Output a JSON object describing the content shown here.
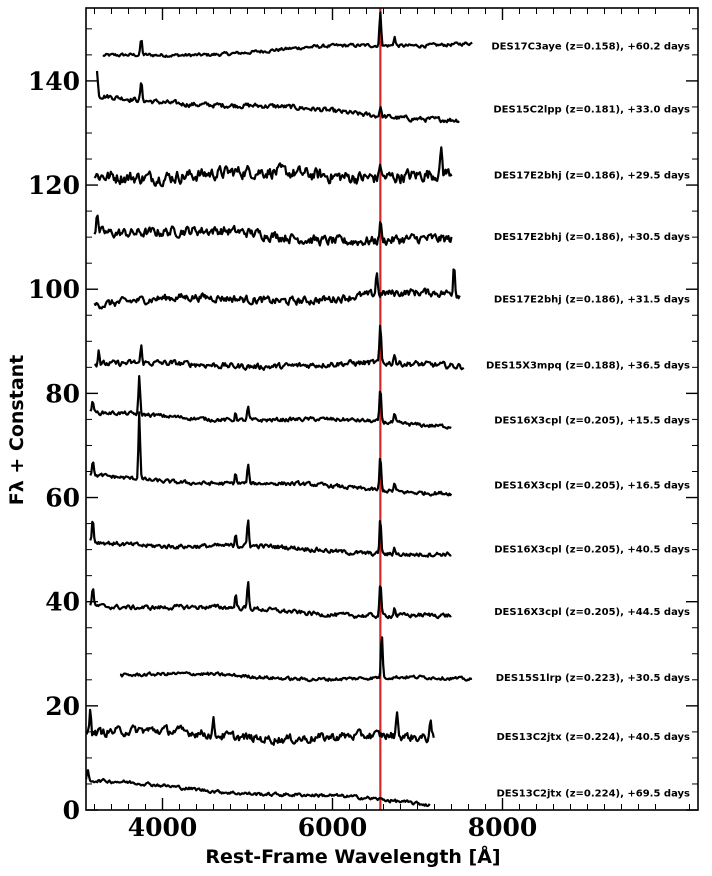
{
  "chart_data": {
    "type": "line",
    "xlabel": "Rest-Frame Wavelength [Å]",
    "ylabel": "Fλ + Constant",
    "xlim": [
      3100,
      10300
    ],
    "ylim": [
      0,
      154
    ],
    "x_ticks": [
      {
        "value": 4000,
        "label": "4000"
      },
      {
        "value": 6000,
        "label": "6000"
      },
      {
        "value": 8000,
        "label": "8000"
      }
    ],
    "y_ticks": [
      {
        "value": 0,
        "label": "0"
      },
      {
        "value": 20,
        "label": "20"
      },
      {
        "value": 40,
        "label": "40"
      },
      {
        "value": 60,
        "label": "60"
      },
      {
        "value": 80,
        "label": "80"
      },
      {
        "value": 100,
        "label": "100"
      },
      {
        "value": 120,
        "label": "120"
      },
      {
        "value": 140,
        "label": "140"
      }
    ],
    "reference_line": {
      "x": 6563,
      "color": "#d62728"
    },
    "series_color": "#000000",
    "series": [
      {
        "label": "DES17C3aye (z=0.158), +60.2 days",
        "x0": 3300,
        "x1": 7650,
        "start": 144.5,
        "end": 147.5,
        "noise": 0.35,
        "emission": [
          [
            3750,
            3.0
          ],
          [
            6563,
            6.5
          ],
          [
            6730,
            1.8
          ]
        ]
      },
      {
        "label": "DES15C2lpp (z=0.181), +33.0 days",
        "x0": 3230,
        "x1": 7500,
        "start": 137.0,
        "end": 132.5,
        "noise": 0.5,
        "emission": [
          [
            3230,
            5.0
          ],
          [
            3750,
            3.5
          ],
          [
            6563,
            2.0
          ]
        ]
      },
      {
        "label": "DES17E2bhj (z=0.186), +29.5 days",
        "x0": 3200,
        "x1": 7400,
        "start": 122.0,
        "end": 122.0,
        "noise": 1.3,
        "emission": [
          [
            6563,
            3.0
          ],
          [
            7280,
            5.0
          ]
        ]
      },
      {
        "label": "DES17E2bhj (z=0.186), +30.5 days",
        "x0": 3200,
        "x1": 7400,
        "start": 111.5,
        "end": 109.0,
        "noise": 1.0,
        "emission": [
          [
            3230,
            4.0
          ],
          [
            6563,
            4.0
          ]
        ]
      },
      {
        "label": "DES17E2bhj (z=0.186), +31.5 days",
        "x0": 3200,
        "x1": 7500,
        "start": 97.5,
        "end": 99.0,
        "noise": 0.8,
        "emission": [
          [
            6520,
            4.5
          ],
          [
            7430,
            6.0
          ]
        ]
      },
      {
        "label": "DES15X3mpq (z=0.188), +36.5 days",
        "x0": 3200,
        "x1": 7550,
        "start": 85.5,
        "end": 85.5,
        "noise": 0.6,
        "emission": [
          [
            3250,
            3.0
          ],
          [
            3750,
            3.0
          ],
          [
            6563,
            7.0
          ],
          [
            6730,
            2.0
          ]
        ]
      },
      {
        "label": "DES16X3cpl (z=0.205), +15.5 days",
        "x0": 3150,
        "x1": 7400,
        "start": 76.0,
        "end": 74.0,
        "noise": 0.4,
        "emission": [
          [
            3180,
            2.5
          ],
          [
            3727,
            7.0
          ],
          [
            4861,
            1.5
          ],
          [
            5007,
            2.5
          ],
          [
            6563,
            6.5
          ],
          [
            6730,
            1.5
          ]
        ]
      },
      {
        "label": "DES16X3cpl (z=0.205), +16.5 days",
        "x0": 3150,
        "x1": 7400,
        "start": 64.0,
        "end": 61.0,
        "noise": 0.4,
        "emission": [
          [
            3180,
            3.0
          ],
          [
            3727,
            13.0
          ],
          [
            4861,
            2.0
          ],
          [
            5007,
            3.5
          ],
          [
            6563,
            6.5
          ],
          [
            6730,
            1.5
          ]
        ]
      },
      {
        "label": "DES16X3cpl (z=0.205), +40.5 days",
        "x0": 3150,
        "x1": 7400,
        "start": 51.5,
        "end": 49.0,
        "noise": 0.45,
        "emission": [
          [
            3180,
            4.5
          ],
          [
            4861,
            2.5
          ],
          [
            5007,
            5.0
          ],
          [
            6563,
            7.0
          ],
          [
            6730,
            1.5
          ]
        ]
      },
      {
        "label": "DES16X3cpl (z=0.205), +44.5 days",
        "x0": 3150,
        "x1": 7400,
        "start": 39.5,
        "end": 37.0,
        "noise": 0.45,
        "emission": [
          [
            3180,
            3.5
          ],
          [
            4861,
            2.5
          ],
          [
            5007,
            5.0
          ],
          [
            6563,
            6.5
          ],
          [
            6730,
            1.5
          ]
        ]
      },
      {
        "label": "DES15S1lrp (z=0.223), +30.5 days",
        "x0": 3500,
        "x1": 7650,
        "start": 26.0,
        "end": 25.0,
        "noise": 0.35,
        "emission": [
          [
            6580,
            8.5
          ]
        ]
      },
      {
        "label": "DES13C2jtx (z=0.224), +40.5 days",
        "x0": 3100,
        "x1": 7200,
        "start": 15.0,
        "end": 13.5,
        "noise": 0.9,
        "emission": [
          [
            3150,
            5.5
          ],
          [
            4600,
            2.5
          ],
          [
            6760,
            5.0
          ],
          [
            7150,
            4.0
          ]
        ]
      },
      {
        "label": "DES13C2jtx (z=0.224), +69.5 days",
        "x0": 3100,
        "x1": 7150,
        "start": 5.5,
        "end": 1.2,
        "noise": 0.35,
        "emission": [
          [
            3120,
            2.0
          ]
        ]
      }
    ]
  }
}
